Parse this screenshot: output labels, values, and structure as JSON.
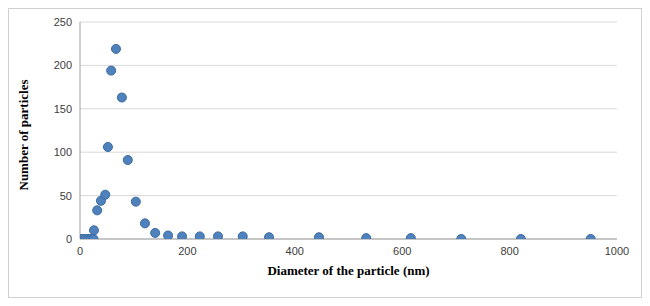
{
  "chart_data": {
    "type": "scatter",
    "x_label": "Diameter of the particle (nm)",
    "y_label": "Number of particles",
    "x": [
      0,
      5,
      10,
      15,
      20,
      25,
      26,
      32,
      39,
      47,
      52,
      58,
      67,
      78,
      89,
      104,
      121,
      140,
      164,
      190,
      223,
      257,
      303,
      352,
      445,
      533,
      616,
      710,
      821,
      951
    ],
    "values": [
      0,
      0,
      0,
      0,
      0,
      0,
      10,
      33,
      44,
      51,
      106,
      194,
      219,
      163,
      91,
      43,
      18,
      7,
      4,
      3,
      3,
      3,
      3,
      2,
      2,
      1,
      1,
      0,
      0,
      0
    ],
    "color": "#4f81bd",
    "marker": "circle",
    "xlim": [
      0,
      1000
    ],
    "xticks": [
      0,
      200,
      400,
      600,
      800,
      1000
    ],
    "ylim": [
      0,
      250
    ],
    "yticks": [
      0,
      50,
      100,
      150,
      200,
      250
    ],
    "grid": true
  }
}
